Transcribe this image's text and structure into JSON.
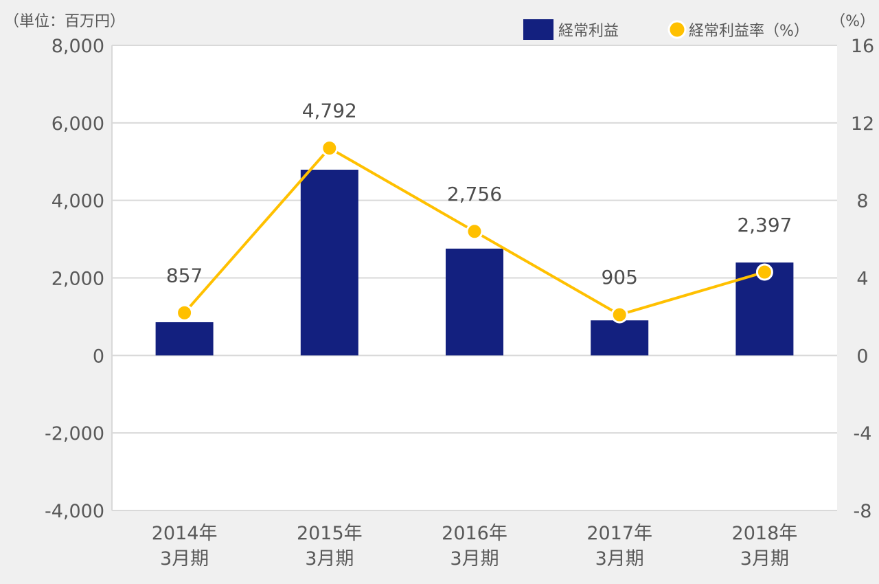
{
  "chart_data": {
    "type": "bar",
    "categories": [
      [
        "2014年",
        "3月期"
      ],
      [
        "2015年",
        "3月期"
      ],
      [
        "2016年",
        "3月期"
      ],
      [
        "2017年",
        "3月期"
      ],
      [
        "2018年",
        "3月期"
      ]
    ],
    "series": [
      {
        "name": "経常利益",
        "type": "bar",
        "axis": "left",
        "color": "#13207f",
        "values": [
          857,
          4792,
          2756,
          905,
          2397
        ],
        "labels": [
          "857",
          "4,792",
          "2,756",
          "905",
          "2,397"
        ]
      },
      {
        "name": "経常利益率（%）",
        "type": "line",
        "axis": "right",
        "color": "#ffc000",
        "values": [
          2.2,
          10.7,
          6.4,
          2.1,
          4.3
        ]
      }
    ],
    "y_left": {
      "unit_label": "（単位：百万円）",
      "ylim": [
        -4000,
        8000
      ],
      "ticks": [
        8000,
        6000,
        4000,
        2000,
        0,
        -2000,
        -4000
      ],
      "tick_labels": [
        "8,000",
        "6,000",
        "4,000",
        "2,000",
        "0",
        "-2,000",
        "-4,000"
      ]
    },
    "y_right": {
      "unit_label": "（%）",
      "ylim": [
        -8,
        16
      ],
      "ticks": [
        16,
        12,
        8,
        4,
        0,
        -4,
        -8
      ],
      "tick_labels": [
        "16",
        "12",
        "8",
        "4",
        "0",
        "-4",
        "-8"
      ]
    },
    "grid": true,
    "legend_position": "top-right"
  },
  "colors": {
    "background": "#f0f0f0",
    "plot_background": "#ffffff",
    "gridline": "#d9d9d9",
    "bar": "#13207f",
    "line": "#ffc000"
  }
}
